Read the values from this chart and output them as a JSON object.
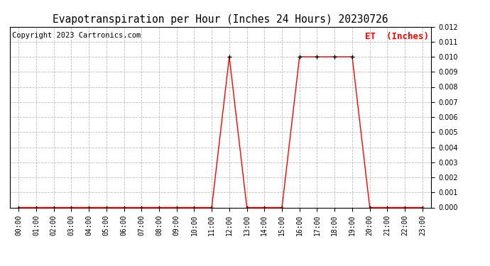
{
  "title": "Evapotranspiration per Hour (Inches 24 Hours) 20230726",
  "copyright": "Copyright 2023 Cartronics.com",
  "legend_label": "ET  (Inches)",
  "hours": [
    0,
    1,
    2,
    3,
    4,
    5,
    6,
    7,
    8,
    9,
    10,
    11,
    12,
    13,
    14,
    15,
    16,
    17,
    18,
    19,
    20,
    21,
    22,
    23
  ],
  "et_values": [
    0.0,
    0.0,
    0.0,
    0.0,
    0.0,
    0.0,
    0.0,
    0.0,
    0.0,
    0.0,
    0.0,
    0.0,
    0.01,
    0.0,
    0.0,
    0.0,
    0.01,
    0.01,
    0.01,
    0.01,
    0.0,
    0.0,
    0.0,
    0.0
  ],
  "line_color": "#ff0000",
  "marker": "+",
  "marker_size": 4,
  "marker_color": "#000000",
  "ylim": [
    0.0,
    0.012
  ],
  "yticks": [
    0.0,
    0.001,
    0.002,
    0.003,
    0.004,
    0.005,
    0.006,
    0.007,
    0.008,
    0.009,
    0.01,
    0.011,
    0.012
  ],
  "background_color": "#ffffff",
  "grid_color": "#bbbbbb",
  "title_fontsize": 10.5,
  "copyright_fontsize": 7.5,
  "legend_fontsize": 9,
  "tick_fontsize": 7,
  "legend_color": "#ff0000",
  "figsize": [
    6.9,
    3.75
  ],
  "dpi": 100
}
